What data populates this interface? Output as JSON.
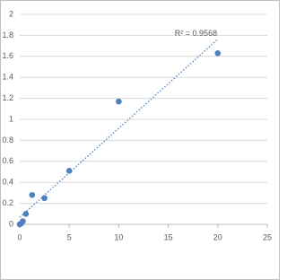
{
  "chart_data": {
    "type": "scatter",
    "x": [
      0,
      0.156,
      0.312,
      0.625,
      1.25,
      2.5,
      5,
      10,
      20
    ],
    "values": [
      0.0,
      0.01,
      0.03,
      0.1,
      0.28,
      0.25,
      0.51,
      1.17,
      1.63
    ],
    "color": "#4f81bd",
    "trendline": "linear",
    "annotation": "R² = 0.9568",
    "xlim": [
      0,
      25
    ],
    "xticks": [
      0,
      5,
      10,
      15,
      20,
      25
    ],
    "ylim": [
      0,
      2
    ],
    "yticks": [
      0,
      0.2,
      0.4,
      0.6,
      0.8,
      1,
      1.2,
      1.4,
      1.6,
      1.8,
      2
    ],
    "grid": true
  }
}
